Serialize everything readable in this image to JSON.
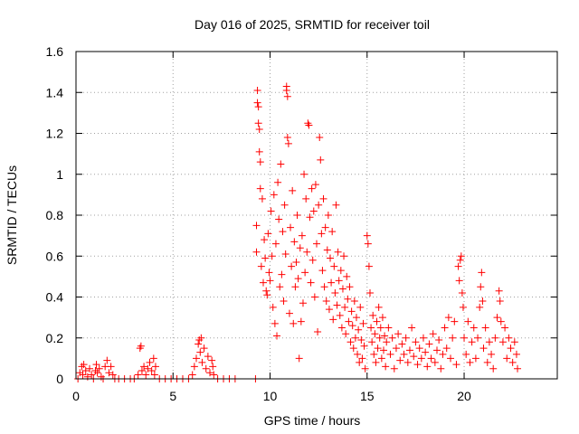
{
  "chart_data": {
    "type": "scatter",
    "title": "Day 016 of 2025, SRMTID for receiver toil",
    "xlabel": "GPS time / hours",
    "ylabel": "SRMTID / TECUs",
    "xlim": [
      0,
      24.8
    ],
    "ylim": [
      0,
      1.6
    ],
    "xticks": [
      0,
      5,
      10,
      15,
      20
    ],
    "xtick_labels": [
      "0",
      "5",
      "10",
      "15",
      "20"
    ],
    "yticks": [
      0,
      0.2,
      0.4,
      0.6,
      0.8,
      1.0,
      1.2,
      1.4,
      1.6
    ],
    "ytick_labels": [
      "0",
      "0.2",
      "0.4",
      "0.6",
      "0.8",
      "1",
      "1.2",
      "1.4",
      "1.6"
    ],
    "grid": true,
    "marker": "+",
    "marker_color": "#ff0000",
    "series": [
      {
        "name": "SRMTID",
        "points": [
          [
            0.1,
            0.0
          ],
          [
            0.2,
            0.03
          ],
          [
            0.3,
            0.06
          ],
          [
            0.35,
            0.02
          ],
          [
            0.4,
            0.07
          ],
          [
            0.5,
            0.04
          ],
          [
            0.6,
            0.01
          ],
          [
            0.7,
            0.05
          ],
          [
            0.8,
            0.02
          ],
          [
            0.9,
            0.0
          ],
          [
            1.0,
            0.04
          ],
          [
            1.05,
            0.07
          ],
          [
            1.1,
            0.03
          ],
          [
            1.2,
            0.05
          ],
          [
            1.3,
            0.01
          ],
          [
            1.4,
            0.0
          ],
          [
            1.5,
            0.06
          ],
          [
            1.6,
            0.09
          ],
          [
            1.7,
            0.03
          ],
          [
            1.8,
            0.06
          ],
          [
            1.9,
            0.02
          ],
          [
            2.0,
            0.0
          ],
          [
            2.2,
            0.0
          ],
          [
            2.5,
            0.0
          ],
          [
            2.8,
            0.0
          ],
          [
            3.0,
            0.0
          ],
          [
            3.2,
            0.02
          ],
          [
            3.3,
            0.15
          ],
          [
            3.35,
            0.16
          ],
          [
            3.4,
            0.04
          ],
          [
            3.5,
            0.06
          ],
          [
            3.6,
            0.02
          ],
          [
            3.7,
            0.05
          ],
          [
            3.8,
            0.08
          ],
          [
            3.9,
            0.04
          ],
          [
            4.0,
            0.1
          ],
          [
            4.05,
            0.02
          ],
          [
            4.1,
            0.06
          ],
          [
            4.3,
            0.0
          ],
          [
            4.6,
            0.0
          ],
          [
            4.9,
            0.0
          ],
          [
            5.2,
            0.0
          ],
          [
            5.5,
            0.0
          ],
          [
            5.8,
            0.0
          ],
          [
            6.0,
            0.02
          ],
          [
            6.1,
            0.06
          ],
          [
            6.2,
            0.1
          ],
          [
            6.3,
            0.17
          ],
          [
            6.35,
            0.19
          ],
          [
            6.4,
            0.13
          ],
          [
            6.45,
            0.2
          ],
          [
            6.5,
            0.08
          ],
          [
            6.6,
            0.15
          ],
          [
            6.7,
            0.05
          ],
          [
            6.8,
            0.11
          ],
          [
            6.9,
            0.03
          ],
          [
            7.0,
            0.09
          ],
          [
            7.05,
            0.06
          ],
          [
            7.1,
            0.02
          ],
          [
            7.3,
            0.0
          ],
          [
            7.6,
            0.0
          ],
          [
            7.9,
            0.0
          ],
          [
            8.2,
            0.0
          ],
          [
            9.25,
            0.0
          ],
          [
            9.3,
            0.75
          ],
          [
            9.3,
            0.62
          ],
          [
            9.35,
            1.41
          ],
          [
            9.35,
            1.35
          ],
          [
            9.4,
            1.33
          ],
          [
            9.4,
            1.25
          ],
          [
            9.45,
            1.22
          ],
          [
            9.45,
            1.11
          ],
          [
            9.5,
            1.06
          ],
          [
            9.5,
            0.93
          ],
          [
            9.55,
            0.55
          ],
          [
            9.6,
            0.88
          ],
          [
            9.65,
            0.47
          ],
          [
            9.7,
            0.68
          ],
          [
            9.75,
            0.59
          ],
          [
            9.8,
            0.43
          ],
          [
            9.85,
            0.41
          ],
          [
            9.9,
            0.71
          ],
          [
            9.95,
            0.52
          ],
          [
            10.0,
            0.48
          ],
          [
            10.05,
            0.82
          ],
          [
            10.1,
            0.6
          ],
          [
            10.15,
            0.35
          ],
          [
            10.2,
            0.9
          ],
          [
            10.25,
            0.27
          ],
          [
            10.3,
            0.66
          ],
          [
            10.35,
            0.21
          ],
          [
            10.4,
            0.96
          ],
          [
            10.45,
            0.78
          ],
          [
            10.5,
            0.45
          ],
          [
            10.55,
            1.05
          ],
          [
            10.6,
            0.51
          ],
          [
            10.65,
            0.72
          ],
          [
            10.7,
            0.38
          ],
          [
            10.75,
            0.85
          ],
          [
            10.8,
            0.61
          ],
          [
            10.85,
            1.43
          ],
          [
            10.85,
            1.41
          ],
          [
            10.9,
            1.38
          ],
          [
            10.9,
            1.18
          ],
          [
            10.95,
            1.15
          ],
          [
            11.0,
            0.32
          ],
          [
            11.05,
            0.74
          ],
          [
            11.1,
            0.55
          ],
          [
            11.15,
            0.92
          ],
          [
            11.2,
            0.27
          ],
          [
            11.25,
            0.67
          ],
          [
            11.3,
            0.45
          ],
          [
            11.35,
            0.57
          ],
          [
            11.4,
            0.8
          ],
          [
            11.45,
            0.49
          ],
          [
            11.5,
            0.1
          ],
          [
            11.55,
            0.64
          ],
          [
            11.6,
            0.28
          ],
          [
            11.65,
            0.7
          ],
          [
            11.7,
            0.37
          ],
          [
            11.75,
            1.0
          ],
          [
            11.8,
            0.52
          ],
          [
            11.85,
            0.88
          ],
          [
            11.9,
            0.62
          ],
          [
            11.95,
            1.25
          ],
          [
            12.0,
            1.24
          ],
          [
            12.05,
            0.79
          ],
          [
            12.1,
            0.47
          ],
          [
            12.15,
            0.93
          ],
          [
            12.2,
            0.58
          ],
          [
            12.25,
            0.82
          ],
          [
            12.3,
            0.4
          ],
          [
            12.35,
            0.95
          ],
          [
            12.4,
            0.66
          ],
          [
            12.45,
            0.23
          ],
          [
            12.5,
            0.85
          ],
          [
            12.55,
            1.18
          ],
          [
            12.6,
            1.07
          ],
          [
            12.65,
            0.71
          ],
          [
            12.7,
            0.53
          ],
          [
            12.75,
            0.88
          ],
          [
            12.8,
            0.45
          ],
          [
            12.85,
            0.74
          ],
          [
            12.9,
            0.38
          ],
          [
            12.95,
            0.63
          ],
          [
            13.0,
            0.8
          ],
          [
            13.05,
            0.34
          ],
          [
            13.1,
            0.59
          ],
          [
            13.15,
            0.47
          ],
          [
            13.2,
            0.72
          ],
          [
            13.25,
            0.29
          ],
          [
            13.3,
            0.55
          ],
          [
            13.35,
            0.42
          ],
          [
            13.4,
            0.85
          ],
          [
            13.45,
            0.36
          ],
          [
            13.5,
            0.62
          ],
          [
            13.55,
            0.48
          ],
          [
            13.6,
            0.31
          ],
          [
            13.65,
            0.53
          ],
          [
            13.7,
            0.25
          ],
          [
            13.75,
            0.44
          ],
          [
            13.8,
            0.6
          ],
          [
            13.85,
            0.35
          ],
          [
            13.9,
            0.22
          ],
          [
            13.95,
            0.5
          ],
          [
            14.0,
            0.39
          ],
          [
            14.05,
            0.28
          ],
          [
            14.1,
            0.45
          ],
          [
            14.15,
            0.18
          ],
          [
            14.2,
            0.33
          ],
          [
            14.25,
            0.26
          ],
          [
            14.3,
            0.15
          ],
          [
            14.35,
            0.38
          ],
          [
            14.4,
            0.2
          ],
          [
            14.45,
            0.3
          ],
          [
            14.5,
            0.12
          ],
          [
            14.55,
            0.24
          ],
          [
            14.6,
            0.08
          ],
          [
            14.65,
            0.35
          ],
          [
            14.7,
            0.19
          ],
          [
            14.75,
            0.1
          ],
          [
            14.8,
            0.27
          ],
          [
            14.85,
            0.16
          ],
          [
            14.9,
            0.05
          ],
          [
            15.0,
            0.7
          ],
          [
            15.05,
            0.66
          ],
          [
            15.1,
            0.55
          ],
          [
            15.15,
            0.42
          ],
          [
            15.2,
            0.25
          ],
          [
            15.25,
            0.18
          ],
          [
            15.3,
            0.31
          ],
          [
            15.35,
            0.12
          ],
          [
            15.4,
            0.22
          ],
          [
            15.45,
            0.08
          ],
          [
            15.5,
            0.28
          ],
          [
            15.55,
            0.15
          ],
          [
            15.6,
            0.35
          ],
          [
            15.65,
            0.2
          ],
          [
            15.7,
            0.25
          ],
          [
            15.75,
            0.1
          ],
          [
            15.8,
            0.3
          ],
          [
            15.85,
            0.14
          ],
          [
            15.9,
            0.21
          ],
          [
            15.95,
            0.06
          ],
          [
            16.0,
            0.18
          ],
          [
            16.1,
            0.25
          ],
          [
            16.2,
            0.12
          ],
          [
            16.3,
            0.2
          ],
          [
            16.4,
            0.05
          ],
          [
            16.5,
            0.15
          ],
          [
            16.6,
            0.22
          ],
          [
            16.7,
            0.09
          ],
          [
            16.8,
            0.17
          ],
          [
            16.9,
            0.12
          ],
          [
            17.0,
            0.2
          ],
          [
            17.1,
            0.08
          ],
          [
            17.2,
            0.14
          ],
          [
            17.3,
            0.25
          ],
          [
            17.4,
            0.11
          ],
          [
            17.5,
            0.18
          ],
          [
            17.6,
            0.07
          ],
          [
            17.7,
            0.15
          ],
          [
            17.8,
            0.1
          ],
          [
            17.9,
            0.2
          ],
          [
            18.0,
            0.13
          ],
          [
            18.1,
            0.06
          ],
          [
            18.2,
            0.17
          ],
          [
            18.3,
            0.1
          ],
          [
            18.4,
            0.22
          ],
          [
            18.5,
            0.08
          ],
          [
            18.6,
            0.14
          ],
          [
            18.7,
            0.19
          ],
          [
            18.8,
            0.05
          ],
          [
            18.9,
            0.12
          ],
          [
            19.0,
            0.25
          ],
          [
            19.1,
            0.15
          ],
          [
            19.2,
            0.3
          ],
          [
            19.3,
            0.1
          ],
          [
            19.4,
            0.2
          ],
          [
            19.5,
            0.28
          ],
          [
            19.6,
            0.07
          ],
          [
            19.7,
            0.55
          ],
          [
            19.75,
            0.48
          ],
          [
            19.8,
            0.58
          ],
          [
            19.85,
            0.6
          ],
          [
            19.9,
            0.42
          ],
          [
            19.95,
            0.35
          ],
          [
            20.0,
            0.2
          ],
          [
            20.1,
            0.12
          ],
          [
            20.2,
            0.28
          ],
          [
            20.3,
            0.08
          ],
          [
            20.4,
            0.18
          ],
          [
            20.5,
            0.25
          ],
          [
            20.6,
            0.1
          ],
          [
            20.7,
            0.2
          ],
          [
            20.8,
            0.35
          ],
          [
            20.85,
            0.45
          ],
          [
            20.9,
            0.52
          ],
          [
            20.95,
            0.38
          ],
          [
            21.0,
            0.15
          ],
          [
            21.1,
            0.25
          ],
          [
            21.2,
            0.08
          ],
          [
            21.3,
            0.18
          ],
          [
            21.4,
            0.12
          ],
          [
            21.5,
            0.05
          ],
          [
            21.6,
            0.2
          ],
          [
            21.7,
            0.3
          ],
          [
            21.8,
            0.43
          ],
          [
            21.85,
            0.38
          ],
          [
            21.9,
            0.28
          ],
          [
            22.0,
            0.18
          ],
          [
            22.1,
            0.25
          ],
          [
            22.2,
            0.1
          ],
          [
            22.3,
            0.2
          ],
          [
            22.4,
            0.15
          ],
          [
            22.5,
            0.08
          ],
          [
            22.6,
            0.18
          ],
          [
            22.7,
            0.12
          ],
          [
            22.75,
            0.05
          ]
        ]
      }
    ]
  }
}
